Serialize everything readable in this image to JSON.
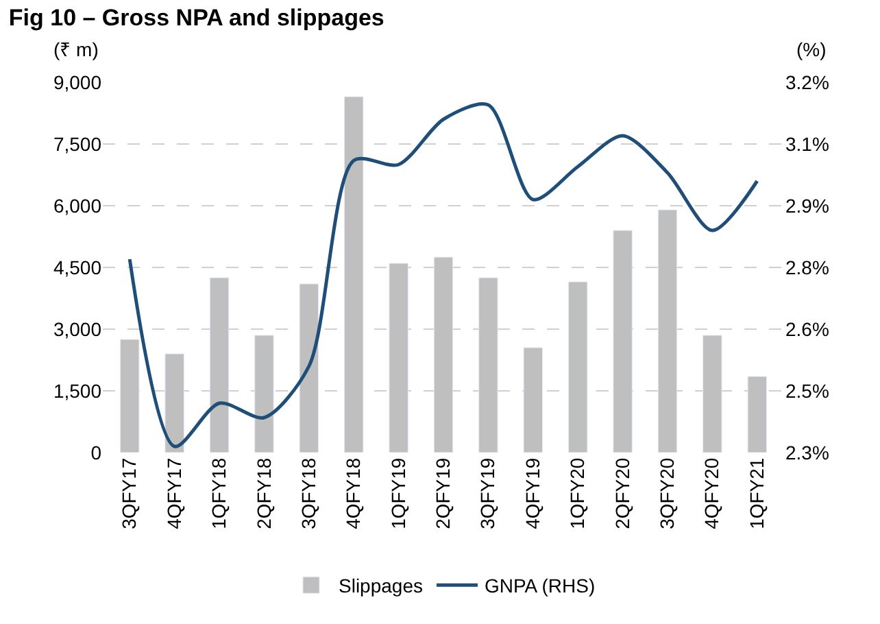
{
  "chart_data": {
    "type": "bar",
    "title": "Fig 10 – Gross NPA and slippages",
    "ylabel": "(₹ m)",
    "y2label": "(%)",
    "categories": [
      "3QFY17",
      "4QFY17",
      "1QFY18",
      "2QFY18",
      "3QFY18",
      "4QFY18",
      "1QFY19",
      "2QFY19",
      "3QFY19",
      "4QFY19",
      "1QFY20",
      "2QFY20",
      "3QFY20",
      "4QFY20",
      "1QFY21"
    ],
    "series": [
      {
        "name": "Slippages",
        "color": "#bfbfbf",
        "values": [
          2750,
          2400,
          4250,
          2850,
          4100,
          8650,
          4600,
          4750,
          4250,
          2550,
          4150,
          5400,
          5900,
          2850,
          1850
        ]
      },
      {
        "name": "GNPA (RHS)",
        "type": "line",
        "axis": "y2",
        "color": "#1f4e79",
        "values": [
          2.77,
          2.315,
          2.42,
          2.385,
          2.51,
          3.01,
          3.0,
          3.11,
          3.145,
          2.915,
          2.995,
          3.07,
          2.98,
          2.84,
          2.96
        ]
      }
    ],
    "ylim": [
      0,
      9000
    ],
    "yticks": [
      0,
      {
        "value": 1500,
        "label": "1,500"
      },
      {
        "value": 3000,
        "label": "3,000"
      },
      {
        "value": 4500,
        "label": "4,500"
      },
      {
        "value": 6000,
        "label": "6,000"
      },
      {
        "value": 7500,
        "label": "7,500"
      },
      {
        "value": 9000,
        "label": "9,000"
      }
    ],
    "y2lim": [
      2.3,
      3.2
    ],
    "y2ticks": [
      {
        "value": 2.3,
        "label": "2.3%"
      },
      {
        "value": 2.45,
        "label": "2.5%"
      },
      {
        "value": 2.6,
        "label": "2.6%"
      },
      {
        "value": 2.75,
        "label": "2.8%"
      },
      {
        "value": 2.9,
        "label": "2.9%"
      },
      {
        "value": 3.05,
        "label": "3.1%"
      },
      {
        "value": 3.2,
        "label": "3.2%"
      }
    ],
    "grid": "y",
    "legend": "bottom",
    "marker": "none",
    "line_style": "solid"
  }
}
